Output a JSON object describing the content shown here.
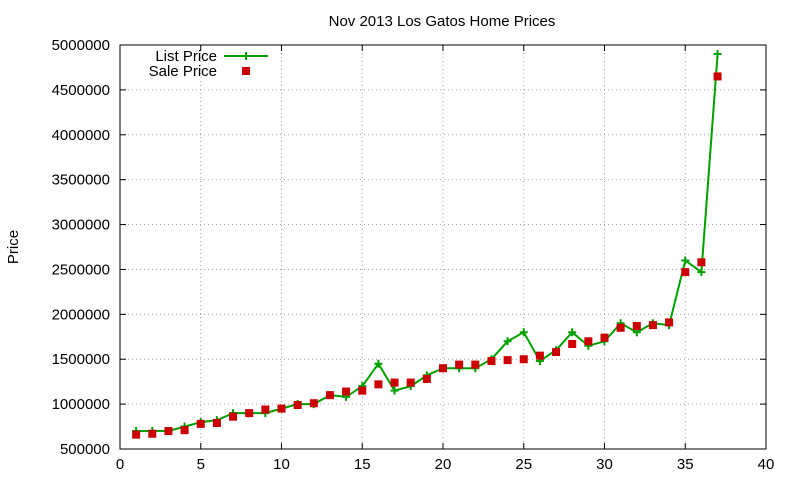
{
  "chart_data": {
    "type": "line",
    "title": "Nov 2013 Los Gatos Home Prices",
    "xlabel": "",
    "ylabel": "Price",
    "xlim": [
      0,
      40
    ],
    "ylim": [
      500000,
      5000000
    ],
    "xticks": [
      0,
      5,
      10,
      15,
      20,
      25,
      30,
      35,
      40
    ],
    "yticks": [
      500000,
      1000000,
      1500000,
      2000000,
      2500000,
      3000000,
      3500000,
      4000000,
      4500000,
      5000000
    ],
    "grid": true,
    "legend_position": "top-left",
    "x": [
      1,
      2,
      3,
      4,
      5,
      6,
      7,
      8,
      9,
      10,
      11,
      12,
      13,
      14,
      15,
      16,
      17,
      18,
      19,
      20,
      21,
      22,
      23,
      24,
      25,
      26,
      27,
      28,
      29,
      30,
      31,
      32,
      33,
      34,
      35,
      36,
      37
    ],
    "series": [
      {
        "name": "List Price",
        "style": "linespoints",
        "color": "#00a000",
        "marker": "plus",
        "values": [
          700000,
          700000,
          700000,
          750000,
          800000,
          820000,
          900000,
          900000,
          900000,
          950000,
          1000000,
          1000000,
          1100000,
          1080000,
          1200000,
          1450000,
          1150000,
          1200000,
          1320000,
          1400000,
          1400000,
          1400000,
          1500000,
          1700000,
          1800000,
          1480000,
          1600000,
          1800000,
          1650000,
          1700000,
          1900000,
          1800000,
          1900000,
          1880000,
          2600000,
          2470000,
          4900000
        ]
      },
      {
        "name": "Sale Price",
        "style": "points",
        "color": "#cc0000",
        "marker": "square",
        "values": [
          660000,
          670000,
          700000,
          710000,
          780000,
          790000,
          860000,
          900000,
          940000,
          950000,
          990000,
          1010000,
          1100000,
          1140000,
          1150000,
          1220000,
          1240000,
          1240000,
          1280000,
          1400000,
          1440000,
          1440000,
          1480000,
          1490000,
          1500000,
          1540000,
          1580000,
          1670000,
          1700000,
          1740000,
          1850000,
          1870000,
          1880000,
          1910000,
          2470000,
          2580000,
          4650000
        ]
      }
    ]
  }
}
